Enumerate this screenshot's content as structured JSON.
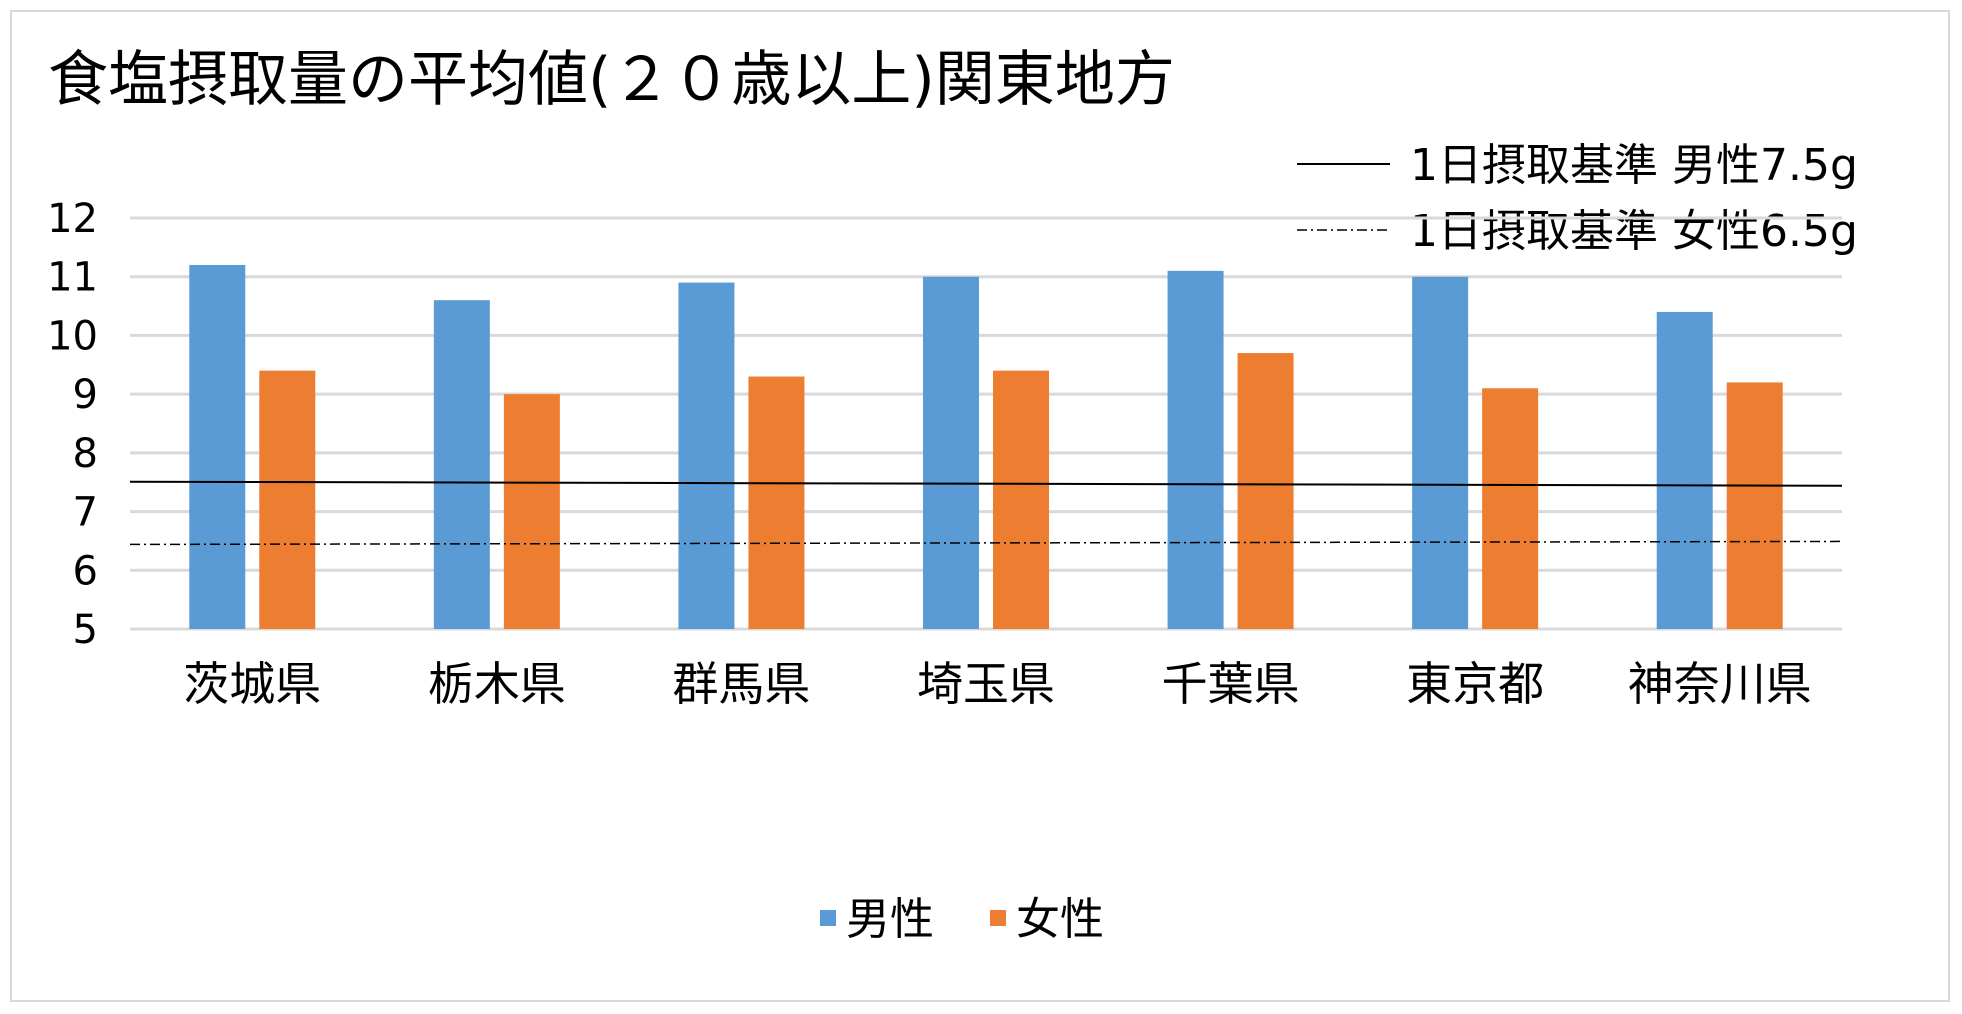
{
  "chart_data": {
    "type": "bar",
    "title": "食塩摂取量の平均値(２０歳以上)関東地方",
    "categories": [
      "茨城県",
      "栃木県",
      "群馬県",
      "埼玉県",
      "千葉県",
      "東京都",
      "神奈川県"
    ],
    "series": [
      {
        "name": "男性",
        "values": [
          11.2,
          10.6,
          10.9,
          11.0,
          11.1,
          11.0,
          10.4
        ],
        "color": "#5b9bd5"
      },
      {
        "name": "女性",
        "values": [
          9.4,
          9.0,
          9.3,
          9.4,
          9.7,
          9.1,
          9.2
        ],
        "color": "#ed7d31"
      }
    ],
    "reference_lines": [
      {
        "label": "1日摂取基準 男性7.5g",
        "value": 7.5,
        "style": "solid",
        "color": "#000000"
      },
      {
        "label": "1日摂取基準 女性6.5g",
        "value": 6.5,
        "style": "dash-dot",
        "color": "#000000"
      }
    ],
    "ylim": [
      5,
      12
    ],
    "yticks": [
      5,
      6,
      7,
      8,
      9,
      10,
      11,
      12
    ],
    "grid": true,
    "legend_position": "bottom",
    "reference_legend_position": "top-right"
  }
}
